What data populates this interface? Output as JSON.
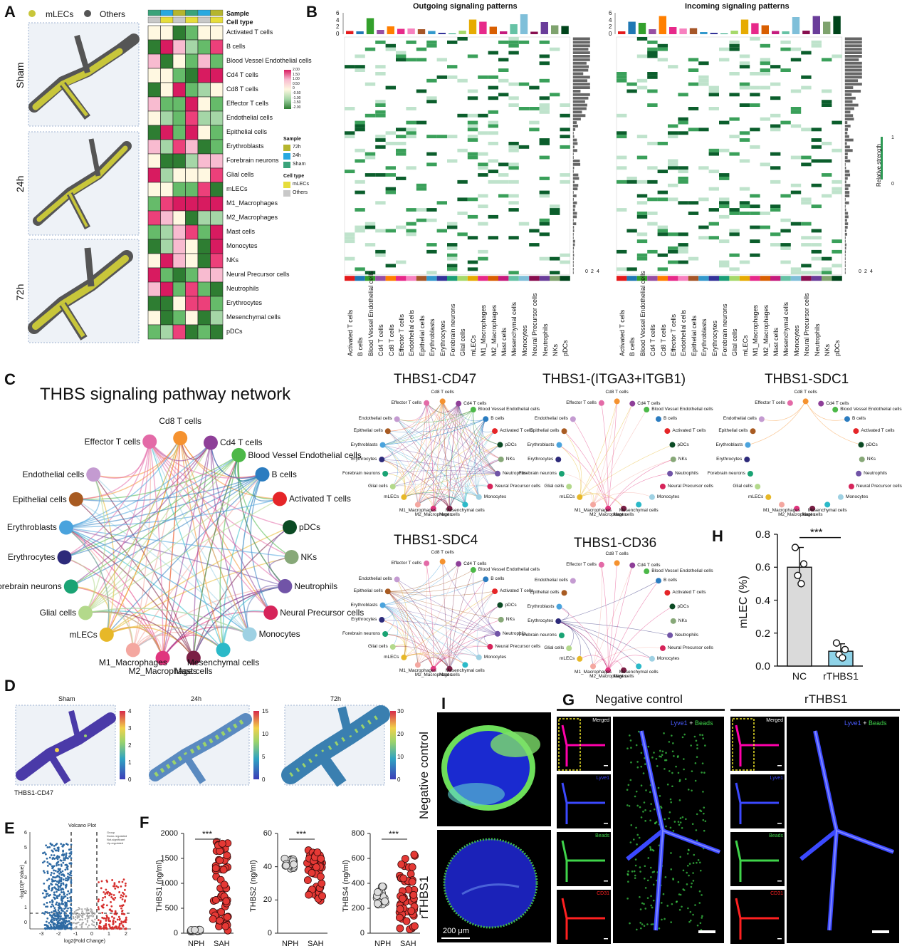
{
  "panels": {
    "A": "A",
    "B": "B",
    "C": "C",
    "D": "D",
    "E": "E",
    "F": "F",
    "G": "G",
    "H": "H",
    "I": "I"
  },
  "panelA": {
    "legend": {
      "mlecs": "mLECs",
      "others": "Others"
    },
    "rows": [
      "Sham",
      "24h",
      "72h"
    ],
    "heatmap_headers": {
      "sample": "Sample",
      "celltype": "Cell type"
    },
    "cell_types": [
      "Activated T cells",
      "B cells",
      "Blood Vessel Endothelial cells",
      "Cd4 T cells",
      "Cd8 T cells",
      "Effector T cells",
      "Endothelial cells",
      "Epithelial cells",
      "Erythroblasts",
      "Forebrain neurons",
      "Glial cells",
      "mLECs",
      "M1_Macrophages",
      "M2_Macrophages",
      "Mast cells",
      "Monocytes",
      "NKs",
      "Neural Precursor cells",
      "Neutrophils",
      "Erythrocytes",
      "Mesenchymal cells",
      "pDCs"
    ],
    "scale_ticks": [
      "2.00",
      "1.50",
      "1.00",
      "0.50",
      "0",
      "-0.50",
      "-1.00",
      "-1.50",
      "-2.00"
    ],
    "sample_legend_title": "Sample",
    "sample_legend": [
      "72h",
      "24h",
      "Sham"
    ],
    "celltype_legend_title": "Cell type",
    "celltype_legend": [
      "mLECs",
      "Others"
    ],
    "colors": {
      "mlec": "#c8c63a",
      "other": "#555555",
      "s72": "#b5b52e",
      "s24": "#29a9e0",
      "sham": "#3aa37a"
    }
  },
  "panelB": {
    "out_title": "Outgoing signaling patterns",
    "in_title": "Incoming signaling patterns",
    "y_ticks": [
      "6",
      "4",
      "2",
      "0"
    ],
    "x_ticks": [
      "0",
      "2",
      "4"
    ],
    "strength_label": "Relative strength",
    "strength_ticks": [
      "1",
      "0"
    ],
    "cell_types": [
      "Activated T cells",
      "B cells",
      "Blood Vessel Endothelial cells",
      "Cd4 T cells",
      "Cd8 T cells",
      "Effector T cells",
      "Endothelial cells",
      "Epithelial cells",
      "Erythroblasts",
      "Erythrocytes",
      "Forebrain neurons",
      "Glial cells",
      "mLECs",
      "M1_Macrophages",
      "M2_Macrophages",
      "Mast cells",
      "Mesenchymal cells",
      "Monocytes",
      "Neural Precursor cells",
      "Neutrophils",
      "NKs",
      "pDCs"
    ],
    "colors": [
      "#e41a1c",
      "#1f78b4",
      "#33a02c",
      "#984ea3",
      "#ff7f00",
      "#e7298a",
      "#f781bf",
      "#a65628",
      "#3399cc",
      "#333399",
      "#1b9e77",
      "#a6d96a",
      "#e6ab02",
      "#e7298a",
      "#d95f02",
      "#c51b7d",
      "#66c2a5",
      "#7fbfd9",
      "#880e4f",
      "#6a3d9a",
      "#7fa36e",
      "#00441b"
    ],
    "out_bars": [
      0.9,
      0.8,
      4.5,
      1.2,
      2.2,
      1.5,
      1.6,
      1.4,
      0.9,
      0.4,
      0.2,
      1.0,
      4.1,
      3.5,
      2.1,
      0.8,
      2.8,
      5.6,
      0.7,
      3.4,
      2.5,
      2.3
    ],
    "in_bars": [
      0.8,
      3.5,
      3.2,
      1.4,
      5.1,
      2.0,
      1.6,
      1.7,
      0.6,
      0.4,
      0.2,
      1.0,
      4.1,
      3.1,
      2.5,
      0.9,
      0.8,
      4.8,
      1.0,
      5.1,
      3.5,
      5.1
    ]
  },
  "panelC": {
    "title": "THBS signaling pathway network",
    "nodes": [
      {
        "name": "Effector T cells",
        "color": "#e36aa7"
      },
      {
        "name": "Cd8 T cells",
        "color": "#f5922f"
      },
      {
        "name": "Cd4 T cells",
        "color": "#8e3f98"
      },
      {
        "name": "Blood Vessel Endothelial cells",
        "color": "#4cb848"
      },
      {
        "name": "B cells",
        "color": "#2b7cc0"
      },
      {
        "name": "Activated T cells",
        "color": "#e52528"
      },
      {
        "name": "pDCs",
        "color": "#0b4a24"
      },
      {
        "name": "NKs",
        "color": "#87a878"
      },
      {
        "name": "Neutrophils",
        "color": "#7154a7"
      },
      {
        "name": "Neural Precursor cells",
        "color": "#d6245a"
      },
      {
        "name": "Monocytes",
        "color": "#9ed1e3"
      },
      {
        "name": "Mesenchymal cells",
        "color": "#2bb9c8"
      },
      {
        "name": "Mast cells",
        "color": "#7a1f45"
      },
      {
        "name": "M2_Macrophages",
        "color": "#e0357e"
      },
      {
        "name": "M1_Macrophages",
        "color": "#f4a7a0"
      },
      {
        "name": "mLECs",
        "color": "#e7b828"
      },
      {
        "name": "Glial cells",
        "color": "#b3d98b"
      },
      {
        "name": "Forebrain neurons",
        "color": "#1aa374"
      },
      {
        "name": "Erythrocytes",
        "color": "#2d2a7a"
      },
      {
        "name": "Erythroblasts",
        "color": "#4aa3dd"
      },
      {
        "name": "Epithelial cells",
        "color": "#a85b22"
      },
      {
        "name": "Endothelial cells",
        "color": "#c49bd1"
      }
    ],
    "subtitles": [
      "THBS1-CD47",
      "THBS1-(ITGA3+ITGB1)",
      "THBS1-SDC1",
      "THBS1-SDC4",
      "THBS1-CD36"
    ]
  },
  "panelD": {
    "titles": [
      "Sham",
      "24h",
      "72h"
    ],
    "scale1": [
      "4",
      "3",
      "2",
      "1",
      "0"
    ],
    "scale2": [
      "15",
      "10",
      "5",
      "0"
    ],
    "scale3": [
      "30",
      "20",
      "10",
      "0"
    ],
    "caption": "THBS1-CD47"
  },
  "panelE": {
    "title": "Volcano Plot",
    "ylabel": "-log10(P Value)",
    "xlabel": "log2(Fold Change)",
    "yticks": [
      "6",
      "5",
      "4",
      "3",
      "2",
      "1",
      "0"
    ],
    "xticks": [
      "-3",
      "-2",
      "-1",
      "0",
      "1",
      "2"
    ],
    "legend": [
      "Group",
      "Down-regulated",
      "Not-significant",
      "Up-regulated"
    ]
  },
  "panelF": {
    "charts": [
      {
        "ylabel": "THBS1 (ng/ml)",
        "yticks": [
          "2000",
          "1500",
          "1000",
          "500",
          "0"
        ],
        "groups": [
          "NPH",
          "SAH"
        ],
        "sig": "***"
      },
      {
        "ylabel": "THBS2 (ng/ml)",
        "yticks": [
          "60",
          "40",
          "20",
          "0"
        ],
        "groups": [
          "NPH",
          "SAH"
        ],
        "sig": "***"
      },
      {
        "ylabel": "THBS4 (ng/ml)",
        "yticks": [
          "800",
          "600",
          "400",
          "200",
          "0"
        ],
        "groups": [
          "NPH",
          "SAH"
        ],
        "sig": "***"
      }
    ]
  },
  "panelG": {
    "titles": [
      "Negative control",
      "rTHBS1"
    ],
    "merged": "Merged",
    "lyve1": "Lyve1",
    "beads": "Beads",
    "cd31": "CD31",
    "plus": "+"
  },
  "panelH": {
    "ylabel": "mLEC (%)",
    "yticks": [
      "0.8",
      "0.6",
      "0.4",
      "0.2",
      "0.0"
    ],
    "categories": [
      "NC",
      "rTHBS1"
    ],
    "values": [
      0.6,
      0.09
    ],
    "sig": "***"
  },
  "panelI": {
    "rows": [
      "Negative control",
      "rTHBS1"
    ],
    "scalebar": "200 μm"
  },
  "chart_data": [
    {
      "type": "bar",
      "title": "",
      "categories": [
        "NC",
        "rTHBS1"
      ],
      "values": [
        0.6,
        0.09
      ],
      "ylabel": "mLEC (%)",
      "ylim": [
        0,
        0.8
      ]
    }
  ]
}
